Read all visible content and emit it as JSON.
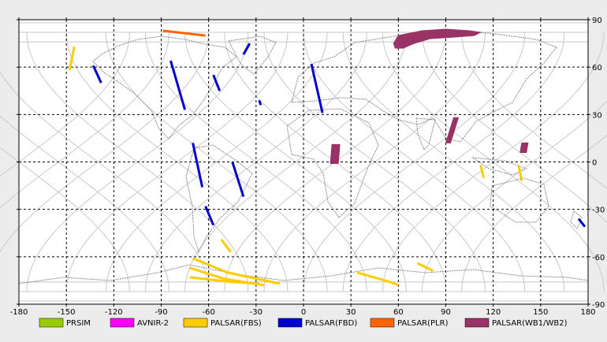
{
  "chart_data": {
    "type": "map",
    "title": "",
    "xlabel": "",
    "ylabel": "",
    "xlim": [
      -180,
      180
    ],
    "ylim": [
      -90,
      90
    ],
    "grid": true,
    "legend_position": "bottom",
    "x_ticks": [
      "-180",
      "-150",
      "-120",
      "-90",
      "-60",
      "-30",
      "0",
      "30",
      "60",
      "90",
      "120",
      "150",
      "180"
    ],
    "y_ticks": [
      "90",
      "60",
      "30",
      "0",
      "-30",
      "-60",
      "-90"
    ],
    "legend": [
      {
        "name": "PRSIM",
        "color": "#99cc00"
      },
      {
        "name": "AVNIR-2",
        "color": "#ff00ff"
      },
      {
        "name": "PALSAR(FBS)",
        "color": "#ffcc00"
      },
      {
        "name": "PALSAR(FBD)",
        "color": "#0000cc"
      },
      {
        "name": "PALSAR(PLR)",
        "color": "#ff6600"
      },
      {
        "name": "PALSAR(WB1/WB2)",
        "color": "#993366"
      }
    ],
    "series": [
      {
        "name": "PALSAR(FBS)",
        "color": "#ffcc00",
        "segments": [
          [
            [
              -145,
              73
            ],
            [
              -148,
              58
            ]
          ],
          [
            [
              -52,
              -49
            ],
            [
              -46,
              -57
            ]
          ],
          [
            [
              -70,
              -61
            ],
            [
              -48,
              -70
            ],
            [
              -15,
              -77
            ]
          ],
          [
            [
              -72,
              -67
            ],
            [
              -50,
              -74
            ],
            [
              -25,
              -78
            ]
          ],
          [
            [
              -72,
              -73
            ],
            [
              -45,
              -76
            ],
            [
              -28,
              -77
            ]
          ],
          [
            [
              34,
              -70
            ],
            [
              55,
              -76
            ],
            [
              60,
              -78
            ]
          ],
          [
            [
              72,
              -64
            ],
            [
              82,
              -69
            ]
          ],
          [
            [
              112,
              -2
            ],
            [
              114,
              -10
            ]
          ],
          [
            [
              136,
              -2
            ],
            [
              138,
              -12
            ]
          ]
        ]
      },
      {
        "name": "PALSAR(FBD)",
        "color": "#0000cc",
        "segments": [
          [
            [
              -133,
              61
            ],
            [
              -128,
              50
            ]
          ],
          [
            [
              -84,
              64
            ],
            [
              -75,
              33
            ]
          ],
          [
            [
              -57,
              55
            ],
            [
              -53,
              45
            ]
          ],
          [
            [
              -70,
              12
            ],
            [
              -64,
              -16
            ]
          ],
          [
            [
              -45,
              0
            ],
            [
              -38,
              -22
            ]
          ],
          [
            [
              -62,
              -28
            ],
            [
              -57,
              -40
            ]
          ],
          [
            [
              -28,
              39
            ],
            [
              -27,
              36
            ]
          ],
          [
            [
              -34,
              75
            ],
            [
              -38,
              68
            ]
          ],
          [
            [
              5,
              62
            ],
            [
              12,
              31
            ]
          ],
          [
            [
              174,
              -36
            ],
            [
              178,
              -41
            ]
          ]
        ]
      },
      {
        "name": "PALSAR(PLR)",
        "color": "#ff6600",
        "segments": [
          [
            [
              -89,
              83
            ],
            [
              -62,
              80
            ]
          ]
        ]
      },
      {
        "name": "PALSAR(WB1/WB2)",
        "color": "#993366",
        "polygons": [
          [
            [
              57,
              75
            ],
            [
              60,
              80
            ],
            [
              75,
              83
            ],
            [
              90,
              84
            ],
            [
              105,
              83
            ],
            [
              112,
              82
            ],
            [
              108,
              80
            ],
            [
              95,
              79
            ],
            [
              80,
              78
            ],
            [
              70,
              75
            ],
            [
              63,
              72
            ],
            [
              58,
              72
            ]
          ],
          [
            [
              95,
              28
            ],
            [
              98,
              28
            ],
            [
              93,
              12
            ],
            [
              90,
              12
            ]
          ],
          [
            [
              18,
              11
            ],
            [
              23,
              11
            ],
            [
              22,
              -1
            ],
            [
              17,
              -1
            ]
          ],
          [
            [
              138,
              12
            ],
            [
              142,
              12
            ],
            [
              141,
              6
            ],
            [
              137,
              6
            ]
          ]
        ]
      },
      {
        "name": "PRSIM",
        "color": "#99cc00",
        "segments": []
      },
      {
        "name": "AVNIR-2",
        "color": "#ff00ff",
        "segments": []
      }
    ]
  }
}
